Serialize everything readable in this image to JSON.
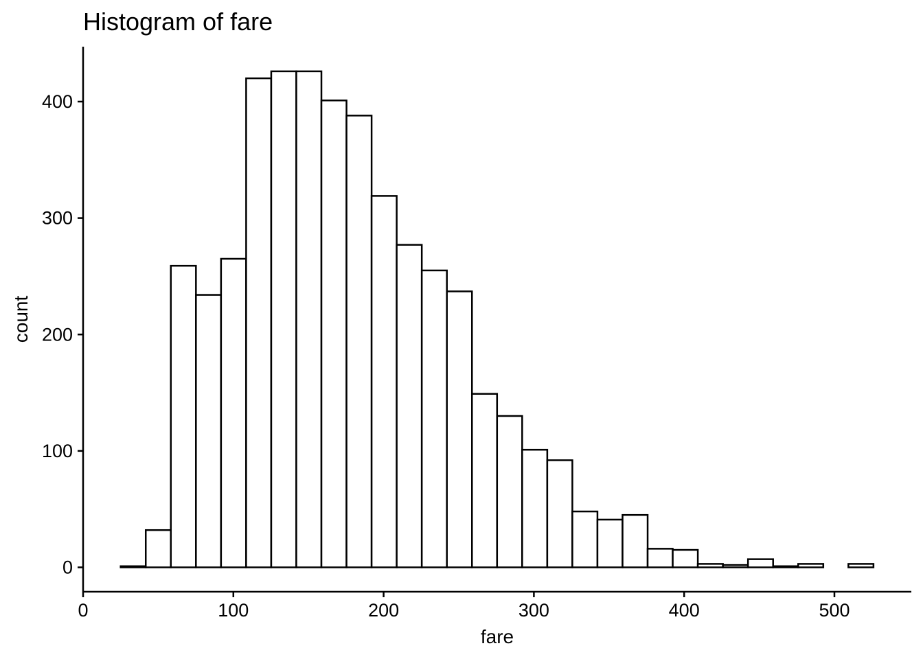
{
  "chart_data": {
    "type": "bar",
    "title": "Histogram of fare",
    "xlabel": "fare",
    "ylabel": "count",
    "xlim": [
      0,
      550
    ],
    "ylim": [
      0,
      445
    ],
    "x_ticks": [
      0,
      100,
      200,
      300,
      400,
      500
    ],
    "y_ticks": [
      0,
      100,
      200,
      300,
      400
    ],
    "grid": false,
    "legend": "none",
    "bar_fill": "#ffffff",
    "bar_outline": "#000000",
    "bins": [
      {
        "x0": 25.0,
        "x1": 41.7,
        "count": 1
      },
      {
        "x0": 41.7,
        "x2": 0,
        "x1": 58.4,
        "count": 32
      },
      {
        "x0": 58.4,
        "x1": 75.1,
        "count": 259
      },
      {
        "x0": 75.1,
        "x1": 91.8,
        "count": 234
      },
      {
        "x0": 91.8,
        "x1": 108.5,
        "count": 265
      },
      {
        "x0": 108.5,
        "x1": 125.2,
        "count": 420
      },
      {
        "x0": 125.2,
        "x1": 141.9,
        "count": 426
      },
      {
        "x0": 141.9,
        "x1": 158.6,
        "count": 426
      },
      {
        "x0": 158.6,
        "x1": 175.3,
        "count": 401
      },
      {
        "x0": 175.3,
        "x1": 192.0,
        "count": 388
      },
      {
        "x0": 192.0,
        "x1": 208.7,
        "count": 319
      },
      {
        "x0": 208.7,
        "x1": 225.4,
        "count": 277
      },
      {
        "x0": 225.4,
        "x1": 242.1,
        "count": 255
      },
      {
        "x0": 242.1,
        "x1": 258.8,
        "count": 237
      },
      {
        "x0": 258.8,
        "x1": 275.5,
        "count": 149
      },
      {
        "x0": 275.5,
        "x1": 292.2,
        "count": 130
      },
      {
        "x0": 292.2,
        "x1": 308.9,
        "count": 101
      },
      {
        "x0": 308.9,
        "x1": 325.6,
        "count": 92
      },
      {
        "x0": 325.6,
        "x1": 342.3,
        "count": 48
      },
      {
        "x0": 342.3,
        "x1": 359.0,
        "count": 41
      },
      {
        "x0": 359.0,
        "x1": 375.7,
        "count": 45
      },
      {
        "x0": 375.7,
        "x1": 392.4,
        "count": 16
      },
      {
        "x0": 392.4,
        "x1": 409.1,
        "count": 15
      },
      {
        "x0": 409.1,
        "x1": 425.8,
        "count": 3
      },
      {
        "x0": 425.8,
        "x1": 442.5,
        "count": 2
      },
      {
        "x0": 442.5,
        "x1": 459.2,
        "count": 7
      },
      {
        "x0": 459.2,
        "x1": 475.9,
        "count": 1
      },
      {
        "x0": 475.9,
        "x1": 492.6,
        "count": 3
      },
      {
        "x0": 492.6,
        "x1": 509.3,
        "count": 0
      },
      {
        "x0": 509.3,
        "x1": 526.0,
        "count": 3
      }
    ]
  }
}
